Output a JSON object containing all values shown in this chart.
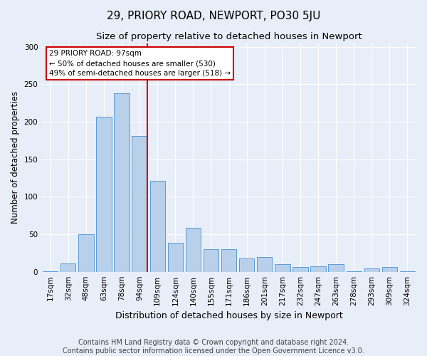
{
  "title": "29, PRIORY ROAD, NEWPORT, PO30 5JU",
  "subtitle": "Size of property relative to detached houses in Newport",
  "xlabel": "Distribution of detached houses by size in Newport",
  "ylabel": "Number of detached properties",
  "categories": [
    "17sqm",
    "32sqm",
    "48sqm",
    "63sqm",
    "78sqm",
    "94sqm",
    "109sqm",
    "124sqm",
    "140sqm",
    "155sqm",
    "171sqm",
    "186sqm",
    "201sqm",
    "217sqm",
    "232sqm",
    "247sqm",
    "263sqm",
    "278sqm",
    "293sqm",
    "309sqm",
    "324sqm"
  ],
  "values": [
    1,
    11,
    50,
    207,
    238,
    181,
    121,
    39,
    59,
    30,
    30,
    18,
    20,
    10,
    6,
    7,
    10,
    1,
    4,
    6,
    1
  ],
  "bar_color": "#b8d0ea",
  "bar_edge_color": "#5b9bd5",
  "vline_color": "#cc0000",
  "annotation_text": "29 PRIORY ROAD: 97sqm\n← 50% of detached houses are smaller (530)\n49% of semi-detached houses are larger (518) →",
  "annotation_box_edgecolor": "#cc0000",
  "footer1": "Contains HM Land Registry data © Crown copyright and database right 2024.",
  "footer2": "Contains public sector information licensed under the Open Government Licence v3.0.",
  "background_color": "#e8eef8",
  "ylim": [
    0,
    305
  ],
  "title_fontsize": 11,
  "subtitle_fontsize": 9.5,
  "xlabel_fontsize": 9,
  "ylabel_fontsize": 8.5,
  "tick_fontsize": 7.5,
  "footer_fontsize": 7,
  "ann_fontsize": 7.5
}
